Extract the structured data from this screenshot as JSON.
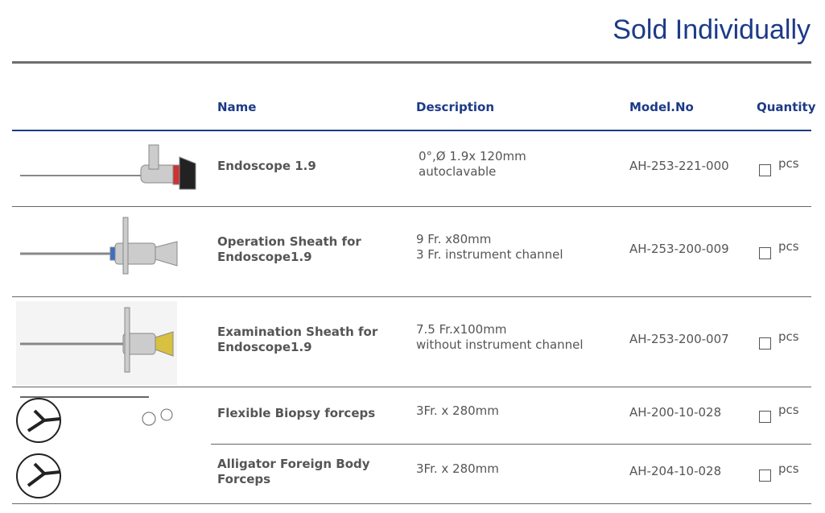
{
  "header": {
    "title": "Sold Individually"
  },
  "table": {
    "columns": [
      "Name",
      "Description",
      "Model.No",
      "Quantity"
    ],
    "rows": [
      {
        "name": "Endoscope 1.9",
        "description": [
          "0°,Ø 1.9x 120mm",
          "autoclavable"
        ],
        "model": "AH-253-221-000",
        "unit": "pcs"
      },
      {
        "name": "Operation Sheath for Endoscope1.9",
        "description": [
          "9 Fr. x80mm",
          "3 Fr. instrument channel"
        ],
        "model": "AH-253-200-009",
        "unit": "pcs"
      },
      {
        "name": "Examination Sheath for Endoscope1.9",
        "description": [
          "7.5 Fr.x100mm",
          "without instrument channel"
        ],
        "model": "AH-253-200-007",
        "unit": "pcs"
      },
      {
        "name": "Flexible Biopsy forceps",
        "description": [
          "3Fr. x 280mm"
        ],
        "model": "AH-200-10-028",
        "unit": "pcs"
      },
      {
        "name": "Alligator Foreign Body Forceps",
        "description": [
          "3Fr. x 280mm"
        ],
        "model": "AH-204-10-028",
        "unit": "pcs"
      }
    ]
  }
}
